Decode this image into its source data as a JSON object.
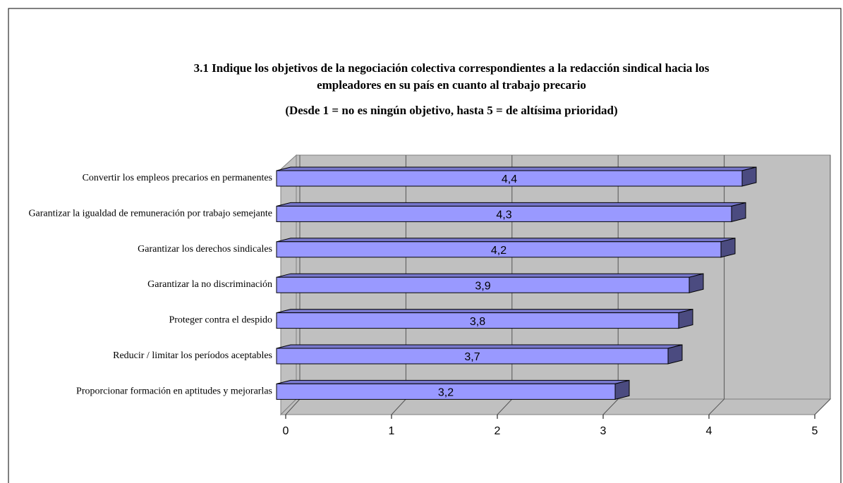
{
  "chart_data": {
    "type": "bar3d_horizontal",
    "title": [
      "3.1  Indique los objetivos de la negociación colectiva correspondientes a la redacción sindical hacia los",
      "empleadores en su país en cuanto al trabajo precario"
    ],
    "subtitle": "(Desde 1 = no es ningún objetivo, hasta 5 = de altísima prioridad)",
    "categories": [
      "Convertir los empleos precarios en permanentes",
      "Garantizar la igualdad de remuneración por trabajo semejante",
      "Garantizar los derechos sindicales",
      "Garantizar la no discriminación",
      "Proteger contra el despido",
      "Reducir / limitar los períodos aceptables",
      "Proporcionar formación en aptitudes y mejorarlas"
    ],
    "values": [
      4.4,
      4.3,
      4.2,
      3.9,
      3.8,
      3.7,
      3.2
    ],
    "value_labels": [
      "4,4",
      "4,3",
      "4,2",
      "3,9",
      "3,8",
      "3,7",
      "3,2"
    ],
    "color": "#9999ff",
    "xlim": [
      0,
      5
    ],
    "xticks": [
      0,
      1,
      2,
      3,
      4,
      5
    ],
    "grid": true
  }
}
